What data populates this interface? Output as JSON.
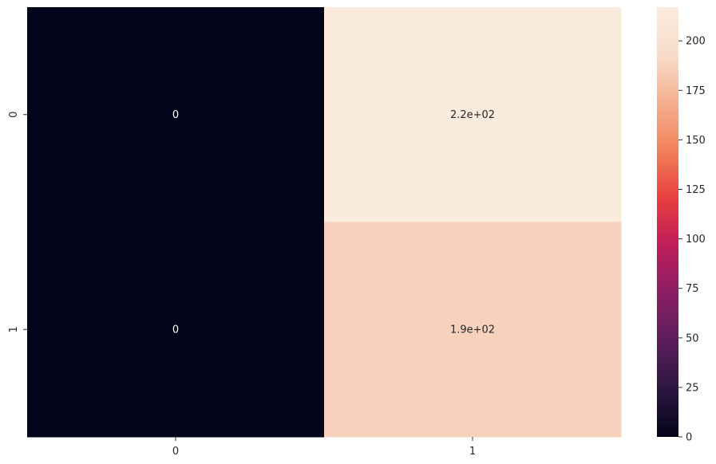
{
  "chart_data": {
    "type": "heatmap",
    "title": "",
    "xlabel": "",
    "ylabel": "",
    "x_categories": [
      "0",
      "1"
    ],
    "y_categories": [
      "0",
      "1"
    ],
    "values": [
      [
        0,
        217
      ],
      [
        0,
        187
      ]
    ],
    "annotations": [
      [
        "0",
        "2.2e+02"
      ],
      [
        "0",
        "1.9e+02"
      ]
    ],
    "colormap": "rocket",
    "colorbar": {
      "min": 0,
      "max": 217,
      "ticks": [
        0,
        25,
        50,
        75,
        100,
        125,
        150,
        175,
        200
      ],
      "tick_labels": [
        "0",
        "25",
        "50",
        "75",
        "100",
        "125",
        "150",
        "175",
        "200"
      ]
    },
    "colormap_stops": [
      "#03051a",
      "#2d1641",
      "#5a1e5c",
      "#8b1e65",
      "#be1d5a",
      "#e83f3f",
      "#f1805a",
      "#f5b08f",
      "#f8dcc9",
      "#faebdd"
    ],
    "grid": false,
    "legend": "colorbar-right"
  }
}
